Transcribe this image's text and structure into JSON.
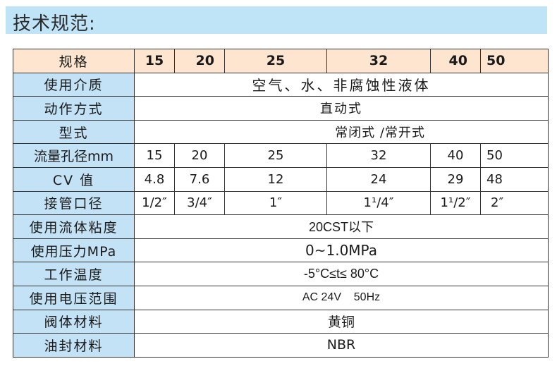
{
  "title": "技术规范:",
  "header": {
    "label": "规格",
    "sizes": [
      "15",
      "20",
      "25",
      "32",
      "40",
      "50"
    ]
  },
  "rows": [
    {
      "label": "使用介质",
      "value": "空气、水、非腐蚀性液体"
    },
    {
      "label": "动作方式",
      "value": "直动式"
    },
    {
      "label": "型式",
      "value": "常闭式 /常开式"
    },
    {
      "label": "流量孔径mm",
      "values": [
        "15",
        "20",
        "25",
        "32",
        "40",
        "50"
      ]
    },
    {
      "label": "CV 值",
      "values": [
        "4.8",
        "7.6",
        "12",
        "24",
        "29",
        "48"
      ]
    },
    {
      "label": "接管口径",
      "values": [
        "1/2″",
        "3/4″",
        "1″",
        "1¹/4″",
        "1¹/2″",
        "2″"
      ]
    },
    {
      "label": "使用流体粘度",
      "value": "20CST以下"
    },
    {
      "label": "使用压力MPa",
      "value": "0~1.0MPa"
    },
    {
      "label": "工作温度",
      "value": "-5°C≤t≤ 80°C"
    },
    {
      "label": "使用电压范围",
      "value": "AC 24V    50Hz"
    },
    {
      "label": "阀体材料",
      "value": "黄铜"
    },
    {
      "label": "油封材料",
      "value": "NBR"
    }
  ],
  "colors": {
    "title_bg": "#bfe3f7",
    "label_bg": "#c3e2f5",
    "header_bg": "#fde5cf"
  }
}
